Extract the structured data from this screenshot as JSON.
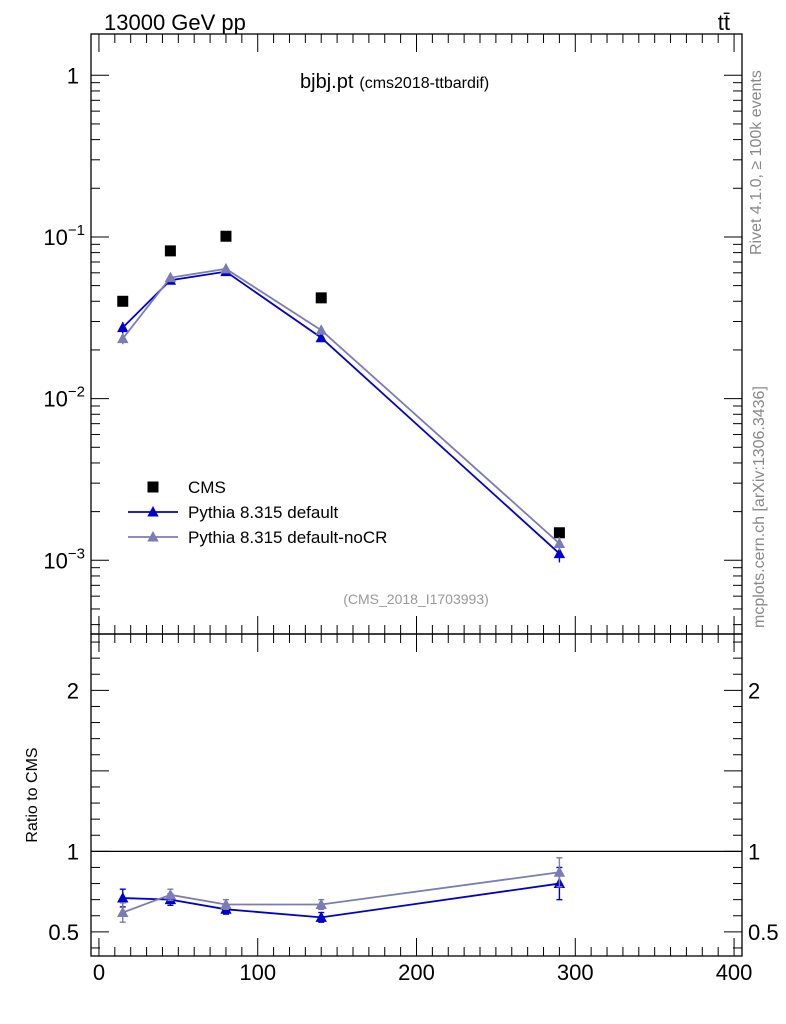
{
  "header": {
    "energy_label": "13000 GeV pp",
    "process_label": "tt̄",
    "rivet_label": "Rivet 4.1.0, ≥ 100k events",
    "mcplots_label": "mcplots.cern.ch [arXiv:1306.3436]"
  },
  "chart_data": [
    {
      "type": "scatter",
      "panel": "main",
      "title": "bjbj.pt",
      "subtitle": "(cms2018-ttbardif)",
      "analysis_tag": "(CMS_2018_I1703993)",
      "yscale": "log",
      "ylim": [
        0.00035,
        1.8
      ],
      "xlim": [
        -5,
        405
      ],
      "y_tick_labels": [
        {
          "value": 1,
          "base": "1",
          "exp": ""
        },
        {
          "value": 0.1,
          "base": "10",
          "exp": "−1"
        },
        {
          "value": 0.01,
          "base": "10",
          "exp": "−2"
        },
        {
          "value": 0.001,
          "base": "10",
          "exp": "−3"
        }
      ],
      "legend_position": "bottom-left",
      "x": [
        15,
        45,
        80,
        140,
        290
      ],
      "series": [
        {
          "name": "CMS",
          "marker": "square",
          "color": "#000000",
          "values": [
            0.04,
            0.082,
            0.101,
            0.042,
            0.00148
          ],
          "errors": [
            0,
            0,
            0,
            0,
            0
          ]
        },
        {
          "name": "Pythia 8.315 default",
          "marker": "triangle",
          "color": "#0000cc",
          "values": [
            0.0275,
            0.054,
            0.061,
            0.0238,
            0.0011
          ],
          "errors": [
            0.0022,
            0.0018,
            0.0015,
            0.001,
            0.00013
          ]
        },
        {
          "name": "Pythia 8.315 default-noCR",
          "marker": "triangle",
          "color": "#7b7bb5",
          "values": [
            0.0235,
            0.056,
            0.0635,
            0.0265,
            0.00127
          ],
          "errors": [
            0.0018,
            0.0018,
            0.0015,
            0.001,
            0.00012
          ]
        }
      ]
    },
    {
      "type": "line",
      "panel": "ratio",
      "ylabel": "Ratio to CMS",
      "ylim": [
        0.35,
        2.35
      ],
      "xlim": [
        -5,
        405
      ],
      "y_tick_labels": [
        0.5,
        1,
        2
      ],
      "x_tick_labels": [
        0,
        100,
        200,
        300,
        400
      ],
      "reference_line": 1,
      "x": [
        15,
        45,
        80,
        140,
        290
      ],
      "series": [
        {
          "name": "Pythia 8.315 default",
          "color": "#0000cc",
          "values": [
            0.71,
            0.7,
            0.64,
            0.59,
            0.8
          ],
          "errors": [
            0.055,
            0.035,
            0.03,
            0.03,
            0.1
          ]
        },
        {
          "name": "Pythia 8.315 default-noCR",
          "color": "#7b7bb5",
          "values": [
            0.62,
            0.73,
            0.67,
            0.67,
            0.87
          ],
          "errors": [
            0.06,
            0.035,
            0.03,
            0.03,
            0.09
          ]
        }
      ]
    }
  ]
}
